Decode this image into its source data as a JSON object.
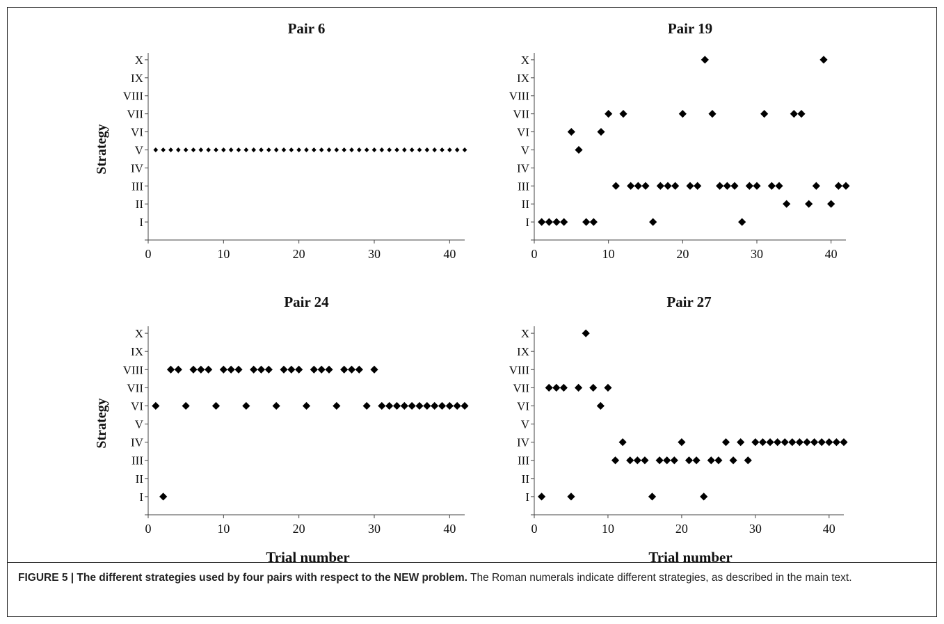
{
  "figure": {
    "caption_label": "FIGURE 5 | The different strategies used by four pairs with respect to the NEW problem.",
    "caption_text": " The Roman numerals indicate different strategies, as described in the main text."
  },
  "chart_data": [
    {
      "type": "scatter",
      "title": "Pair 6",
      "xlabel": "",
      "ylabel": "Strategy",
      "xlim": [
        0,
        42
      ],
      "xticks": [
        0,
        10,
        20,
        30,
        40
      ],
      "yticks": [
        "I",
        "II",
        "III",
        "IV",
        "V",
        "VI",
        "VII",
        "VIII",
        "IX",
        "X"
      ],
      "marker_size": "small",
      "points": [
        [
          1,
          5
        ],
        [
          2,
          5
        ],
        [
          3,
          5
        ],
        [
          4,
          5
        ],
        [
          5,
          5
        ],
        [
          6,
          5
        ],
        [
          7,
          5
        ],
        [
          8,
          5
        ],
        [
          9,
          5
        ],
        [
          10,
          5
        ],
        [
          11,
          5
        ],
        [
          12,
          5
        ],
        [
          13,
          5
        ],
        [
          14,
          5
        ],
        [
          15,
          5
        ],
        [
          16,
          5
        ],
        [
          17,
          5
        ],
        [
          18,
          5
        ],
        [
          19,
          5
        ],
        [
          20,
          5
        ],
        [
          21,
          5
        ],
        [
          22,
          5
        ],
        [
          23,
          5
        ],
        [
          24,
          5
        ],
        [
          25,
          5
        ],
        [
          26,
          5
        ],
        [
          27,
          5
        ],
        [
          28,
          5
        ],
        [
          29,
          5
        ],
        [
          30,
          5
        ],
        [
          31,
          5
        ],
        [
          32,
          5
        ],
        [
          33,
          5
        ],
        [
          34,
          5
        ],
        [
          35,
          5
        ],
        [
          36,
          5
        ],
        [
          37,
          5
        ],
        [
          38,
          5
        ],
        [
          39,
          5
        ],
        [
          40,
          5
        ],
        [
          41,
          5
        ],
        [
          42,
          5
        ]
      ]
    },
    {
      "type": "scatter",
      "title": "Pair 19",
      "xlabel": "",
      "ylabel": "",
      "xlim": [
        0,
        42
      ],
      "xticks": [
        0,
        10,
        20,
        30,
        40
      ],
      "yticks": [
        "I",
        "II",
        "III",
        "IV",
        "V",
        "VI",
        "VII",
        "VIII",
        "IX",
        "X"
      ],
      "marker_size": "large",
      "points": [
        [
          1,
          1
        ],
        [
          2,
          1
        ],
        [
          3,
          1
        ],
        [
          4,
          1
        ],
        [
          5,
          6
        ],
        [
          6,
          5
        ],
        [
          7,
          1
        ],
        [
          8,
          1
        ],
        [
          9,
          6
        ],
        [
          10,
          7
        ],
        [
          11,
          3
        ],
        [
          12,
          7
        ],
        [
          13,
          3
        ],
        [
          14,
          3
        ],
        [
          15,
          3
        ],
        [
          16,
          1
        ],
        [
          17,
          3
        ],
        [
          18,
          3
        ],
        [
          19,
          3
        ],
        [
          20,
          7
        ],
        [
          21,
          3
        ],
        [
          22,
          3
        ],
        [
          23,
          10
        ],
        [
          24,
          7
        ],
        [
          25,
          3
        ],
        [
          26,
          3
        ],
        [
          27,
          3
        ],
        [
          28,
          1
        ],
        [
          29,
          3
        ],
        [
          30,
          3
        ],
        [
          31,
          7
        ],
        [
          32,
          3
        ],
        [
          33,
          3
        ],
        [
          34,
          2
        ],
        [
          35,
          7
        ],
        [
          36,
          7
        ],
        [
          37,
          2
        ],
        [
          38,
          3
        ],
        [
          39,
          10
        ],
        [
          40,
          2
        ],
        [
          41,
          3
        ],
        [
          42,
          3
        ]
      ]
    },
    {
      "type": "scatter",
      "title": "Pair 24",
      "xlabel": "Trial number",
      "ylabel": "Strategy",
      "xlim": [
        0,
        42
      ],
      "xticks": [
        0,
        10,
        20,
        30,
        40
      ],
      "yticks": [
        "I",
        "II",
        "III",
        "IV",
        "V",
        "VI",
        "VII",
        "VIII",
        "IX",
        "X"
      ],
      "marker_size": "large",
      "points": [
        [
          1,
          6
        ],
        [
          2,
          1
        ],
        [
          3,
          8
        ],
        [
          4,
          8
        ],
        [
          5,
          6
        ],
        [
          6,
          8
        ],
        [
          7,
          8
        ],
        [
          8,
          8
        ],
        [
          9,
          6
        ],
        [
          10,
          8
        ],
        [
          11,
          8
        ],
        [
          12,
          8
        ],
        [
          13,
          6
        ],
        [
          14,
          8
        ],
        [
          15,
          8
        ],
        [
          16,
          8
        ],
        [
          17,
          6
        ],
        [
          18,
          8
        ],
        [
          19,
          8
        ],
        [
          20,
          8
        ],
        [
          21,
          6
        ],
        [
          22,
          8
        ],
        [
          23,
          8
        ],
        [
          24,
          8
        ],
        [
          25,
          6
        ],
        [
          26,
          8
        ],
        [
          27,
          8
        ],
        [
          28,
          8
        ],
        [
          29,
          6
        ],
        [
          30,
          8
        ],
        [
          31,
          6
        ],
        [
          32,
          6
        ],
        [
          33,
          6
        ],
        [
          34,
          6
        ],
        [
          35,
          6
        ],
        [
          36,
          6
        ],
        [
          37,
          6
        ],
        [
          38,
          6
        ],
        [
          39,
          6
        ],
        [
          40,
          6
        ],
        [
          41,
          6
        ],
        [
          42,
          6
        ]
      ]
    },
    {
      "type": "scatter",
      "title": "Pair 27",
      "xlabel": "Trial number",
      "ylabel": "",
      "xlim": [
        0,
        42
      ],
      "xticks": [
        0,
        10,
        20,
        30,
        40
      ],
      "yticks": [
        "I",
        "II",
        "III",
        "IV",
        "V",
        "VI",
        "VII",
        "VIII",
        "IX",
        "X"
      ],
      "marker_size": "large",
      "points": [
        [
          1,
          1
        ],
        [
          2,
          7
        ],
        [
          3,
          7
        ],
        [
          4,
          7
        ],
        [
          5,
          1
        ],
        [
          6,
          7
        ],
        [
          7,
          10
        ],
        [
          8,
          7
        ],
        [
          9,
          6
        ],
        [
          10,
          7
        ],
        [
          11,
          3
        ],
        [
          12,
          4
        ],
        [
          13,
          3
        ],
        [
          14,
          3
        ],
        [
          15,
          3
        ],
        [
          16,
          1
        ],
        [
          17,
          3
        ],
        [
          18,
          3
        ],
        [
          19,
          3
        ],
        [
          20,
          4
        ],
        [
          21,
          3
        ],
        [
          22,
          3
        ],
        [
          23,
          1
        ],
        [
          24,
          3
        ],
        [
          25,
          3
        ],
        [
          26,
          4
        ],
        [
          27,
          3
        ],
        [
          28,
          4
        ],
        [
          29,
          3
        ],
        [
          30,
          4
        ],
        [
          31,
          4
        ],
        [
          32,
          4
        ],
        [
          33,
          4
        ],
        [
          34,
          4
        ],
        [
          35,
          4
        ],
        [
          36,
          4
        ],
        [
          37,
          4
        ],
        [
          38,
          4
        ],
        [
          39,
          4
        ],
        [
          40,
          4
        ],
        [
          41,
          4
        ],
        [
          42,
          4
        ]
      ]
    }
  ]
}
